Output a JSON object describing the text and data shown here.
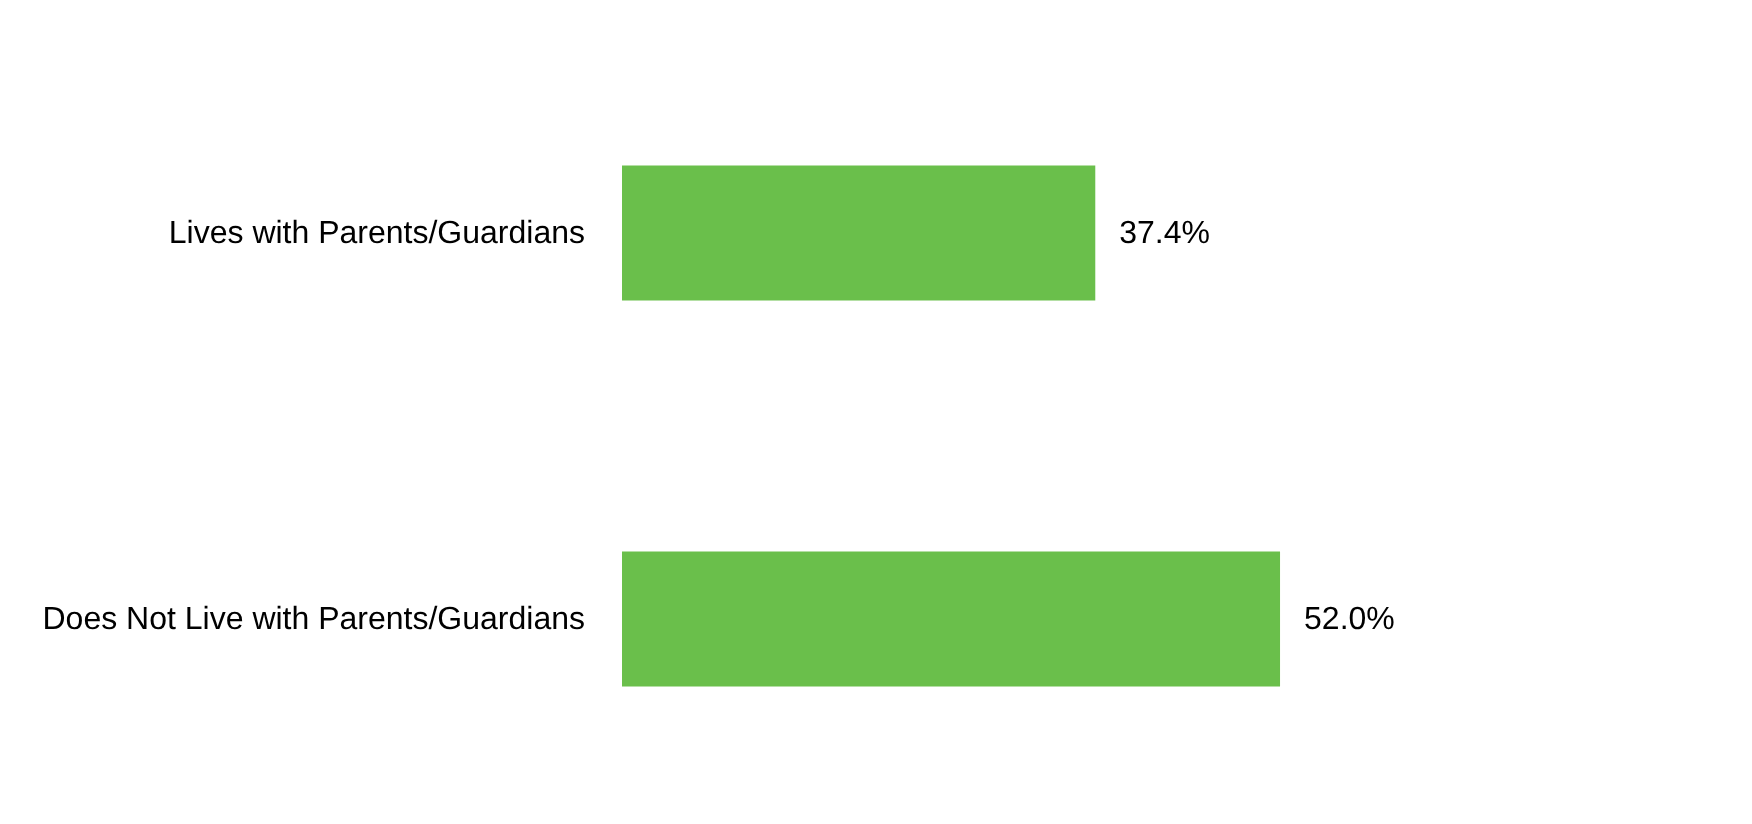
{
  "chart_data": {
    "type": "bar",
    "orientation": "horizontal",
    "categories": [
      "Lives with Parents/Guardians",
      "Does Not Live with Parents/Guardians"
    ],
    "values": [
      37.4,
      52.0
    ],
    "value_labels": [
      "37.4%",
      "52.0%"
    ],
    "color": "#6abf4b",
    "grid": false
  }
}
